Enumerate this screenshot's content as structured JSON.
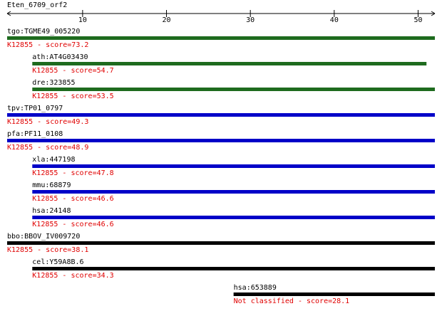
{
  "chart_data": {
    "type": "alignment",
    "title": "Eten_6709_orf2",
    "xlim": [
      1,
      52
    ],
    "xticks": [
      10,
      20,
      30,
      40,
      50
    ],
    "rows": [
      {
        "name": "tgo:TGME49_005220",
        "label": "K12855 - score=73.2",
        "color": "#1e6b1e",
        "start": 1,
        "end": 52
      },
      {
        "name": "ath:AT4G03430",
        "label": "K12855 - score=54.7",
        "color": "#1e6b1e",
        "start": 4,
        "end": 51
      },
      {
        "name": "dre:323855",
        "label": "K12855 - score=53.5",
        "color": "#1e6b1e",
        "start": 4,
        "end": 52
      },
      {
        "name": "tpv:TP01_0797",
        "label": "K12855 - score=49.3",
        "color": "#0000c8",
        "start": 1,
        "end": 52
      },
      {
        "name": "pfa:PF11_0108",
        "label": "K12855 - score=48.9",
        "color": "#0000c8",
        "start": 1,
        "end": 52
      },
      {
        "name": "xla:447198",
        "label": "K12855 - score=47.8",
        "color": "#0000c8",
        "start": 4,
        "end": 52
      },
      {
        "name": "mmu:68879",
        "label": "K12855 - score=46.6",
        "color": "#0000c8",
        "start": 4,
        "end": 52
      },
      {
        "name": "hsa:24148",
        "label": "K12855 - score=46.6",
        "color": "#0000c8",
        "start": 4,
        "end": 52
      },
      {
        "name": "bbo:BBOV_IV009720",
        "label": "K12855 - score=38.1",
        "color": "#000000",
        "start": 1,
        "end": 52
      },
      {
        "name": "cel:Y59A8B.6",
        "label": "K12855 - score=34.3",
        "color": "#000000",
        "start": 4,
        "end": 52
      },
      {
        "name": "hsa:653889",
        "label": "Not classified - score=28.1",
        "color": "#000000",
        "start": 28,
        "end": 52
      }
    ]
  }
}
